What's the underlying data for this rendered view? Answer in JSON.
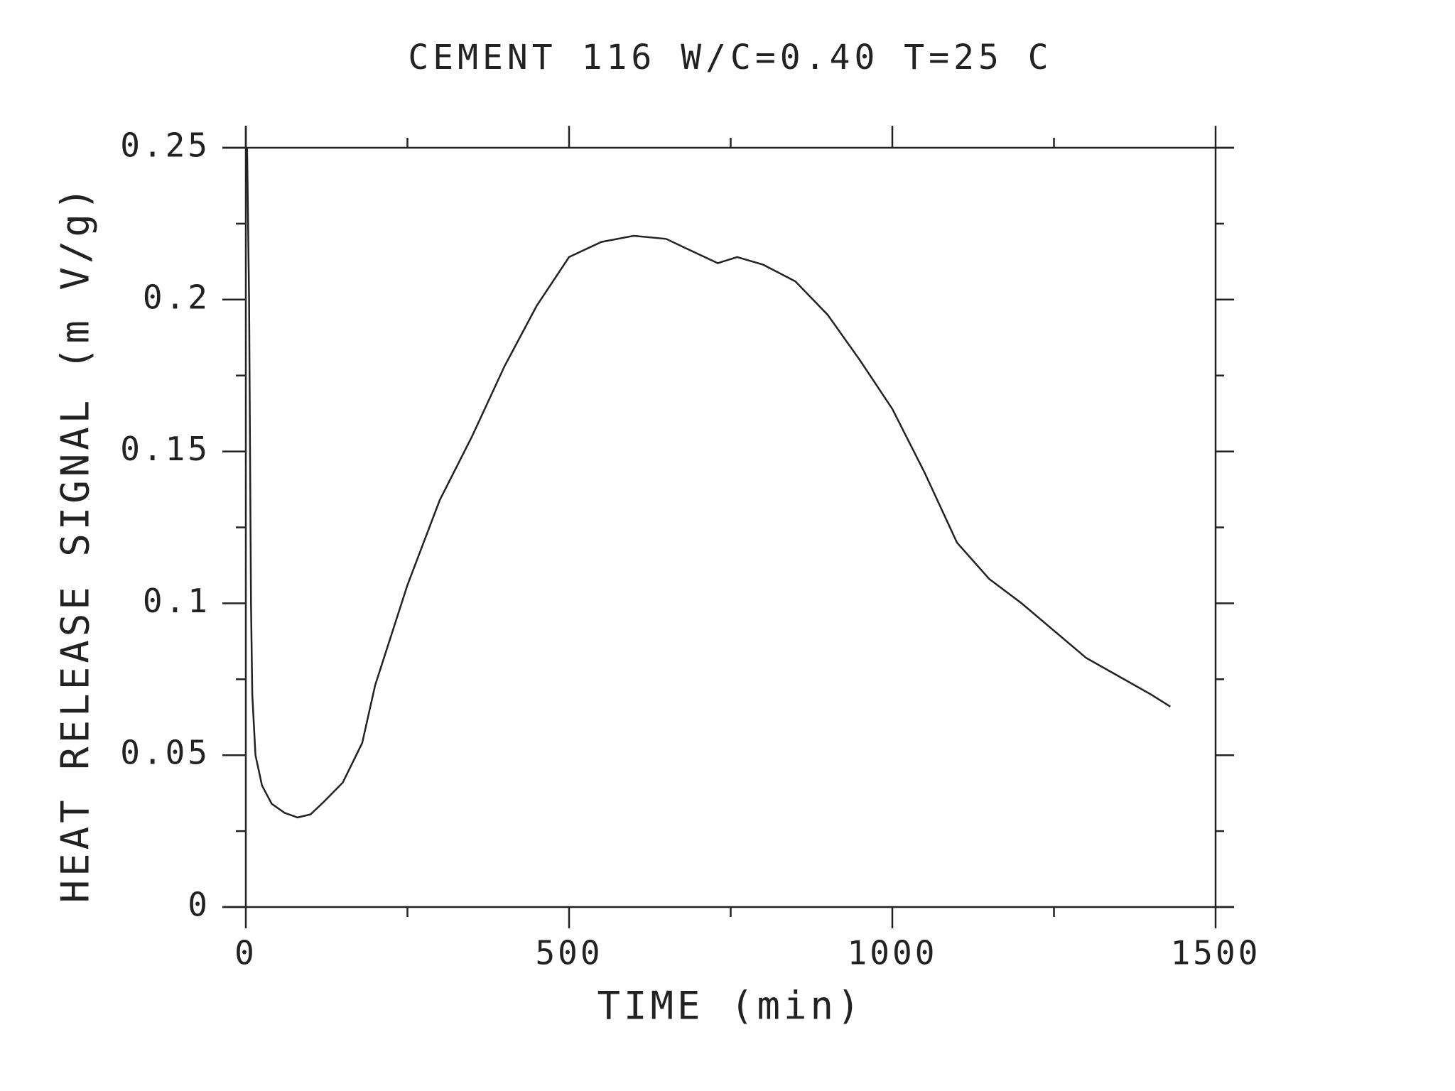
{
  "chart_data": {
    "type": "line",
    "title": "CEMENT 116 W/C=0.40  T=25 C",
    "x_label": "TIME (min)",
    "y_label": "HEAT RELEASE SIGNAL (m V/g)",
    "xlim": [
      0,
      1500
    ],
    "xticks": [
      0,
      500,
      1000,
      1500
    ],
    "ylim": [
      0,
      0.25
    ],
    "yticks": [
      0,
      0.05,
      0.1,
      0.15,
      0.2,
      0.25
    ],
    "series": [
      {
        "color": "#222222",
        "x": [
          2,
          5,
          8,
          10,
          15,
          25,
          40,
          60,
          80,
          100,
          120,
          150,
          180,
          200,
          250,
          300,
          350,
          400,
          450,
          500,
          550,
          600,
          650,
          700,
          730,
          760,
          800,
          850,
          900,
          950,
          1000,
          1050,
          1100,
          1150,
          1200,
          1250,
          1300,
          1350,
          1400,
          1430
        ],
        "values": [
          0.25,
          0.2,
          0.1,
          0.07,
          0.05,
          0.04,
          0.034,
          0.031,
          0.0295,
          0.0305,
          0.0345,
          0.041,
          0.054,
          0.073,
          0.106,
          0.134,
          0.155,
          0.178,
          0.198,
          0.214,
          0.219,
          0.221,
          0.22,
          0.215,
          0.212,
          0.214,
          0.2115,
          0.206,
          0.195,
          0.18,
          0.164,
          0.143,
          0.12,
          0.108,
          0.1,
          0.091,
          0.082,
          0.076,
          0.07,
          0.066
        ]
      }
    ]
  }
}
